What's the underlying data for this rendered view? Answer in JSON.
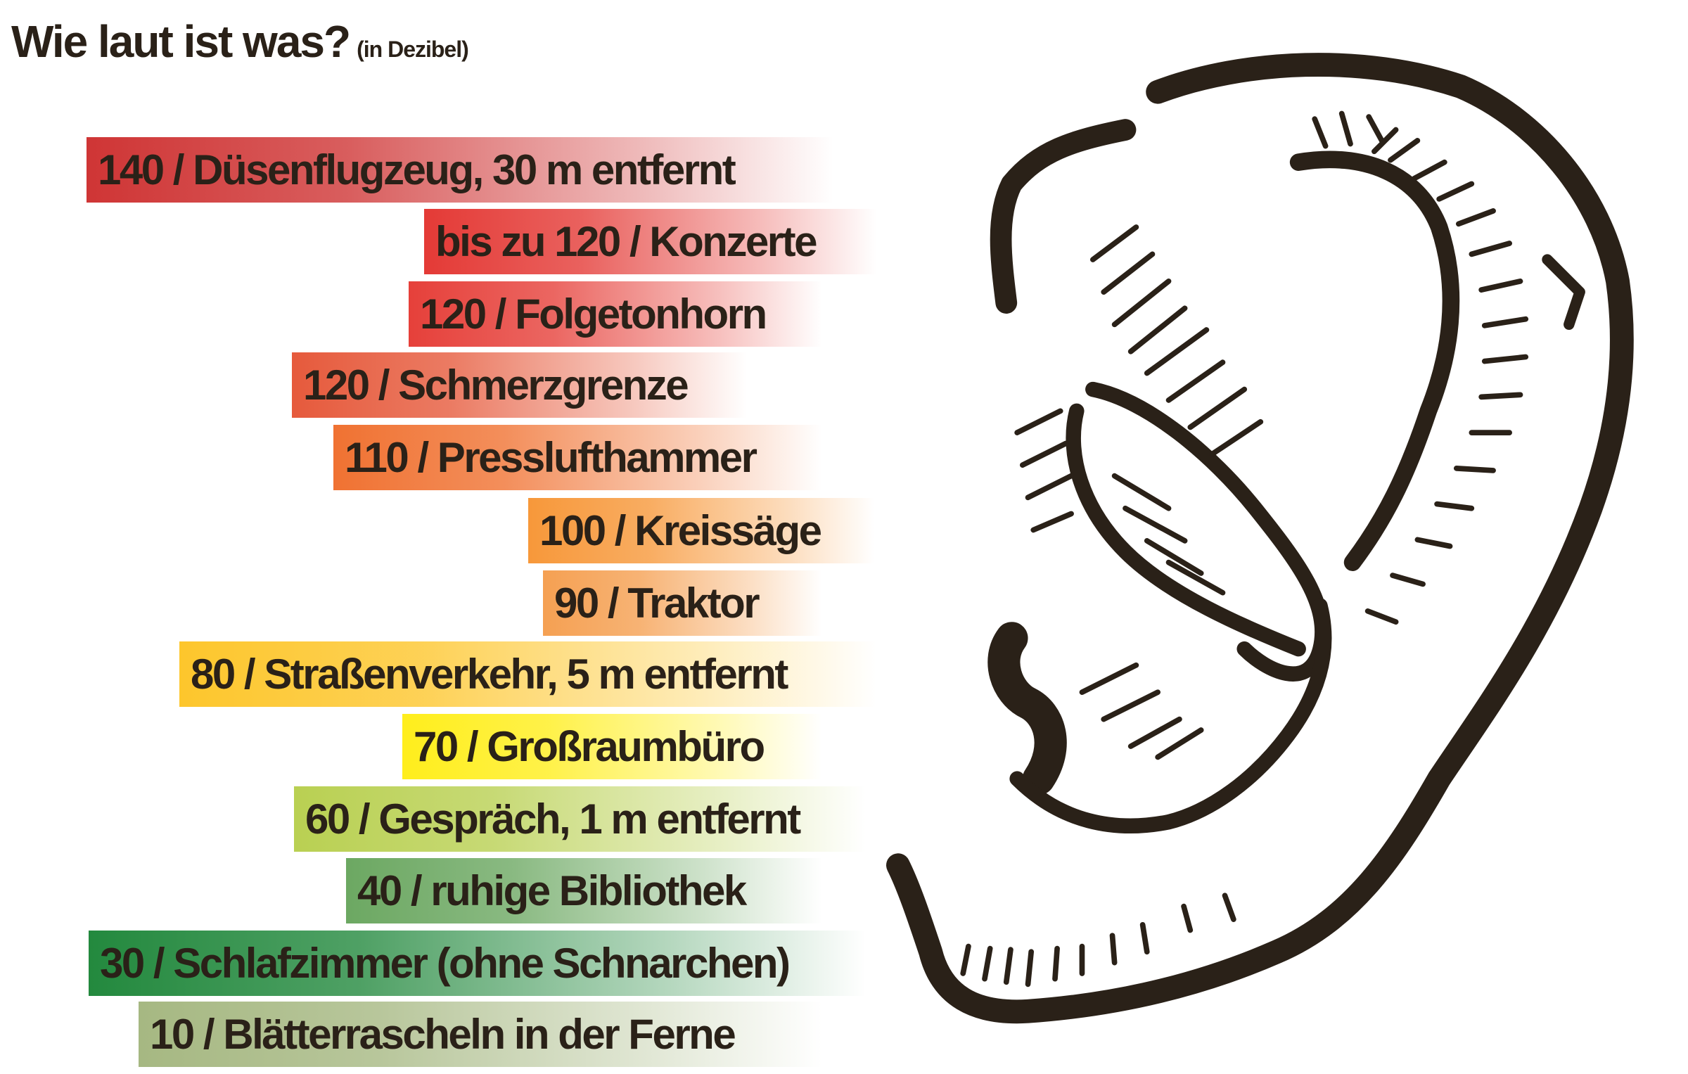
{
  "header": {
    "title": "Wie laut ist was?",
    "subtitle": "(in Dezibel)"
  },
  "items": [
    {
      "label": "140 / Düsenflugzeug, 30 m entfernt",
      "color": "#cf3535"
    },
    {
      "label": "bis zu 120 / Konzerte",
      "color": "#e43a36"
    },
    {
      "label": "120 / Folgetonhorn",
      "color": "#e6403a"
    },
    {
      "label": "120 / Schmerzgrenze",
      "color": "#e65a3c"
    },
    {
      "label": "110 / Presslufthammer",
      "color": "#f07232"
    },
    {
      "label": "100 / Kreissäge",
      "color": "#f7983a"
    },
    {
      "label": "90 / Traktor",
      "color": "#f5a052"
    },
    {
      "label": "80 / Straßenverkehr, 5 m entfernt",
      "color": "#fdc62c"
    },
    {
      "label": "70 / Großraumbüro",
      "color": "#ffee1c"
    },
    {
      "label": "60 / Gespräch, 1 m entfernt",
      "color": "#b9d052"
    },
    {
      "label": "40 / ruhige Bibliothek",
      "color": "#6ca862"
    },
    {
      "label": "30 / Schlafzimmer (ohne Schnarchen)",
      "color": "#23893e"
    },
    {
      "label": "10 / Blätterrascheln in der Ferne",
      "color": "#a6b882"
    }
  ],
  "illustration": {
    "icon": "ear-icon",
    "ink_color": "#2a2118"
  }
}
